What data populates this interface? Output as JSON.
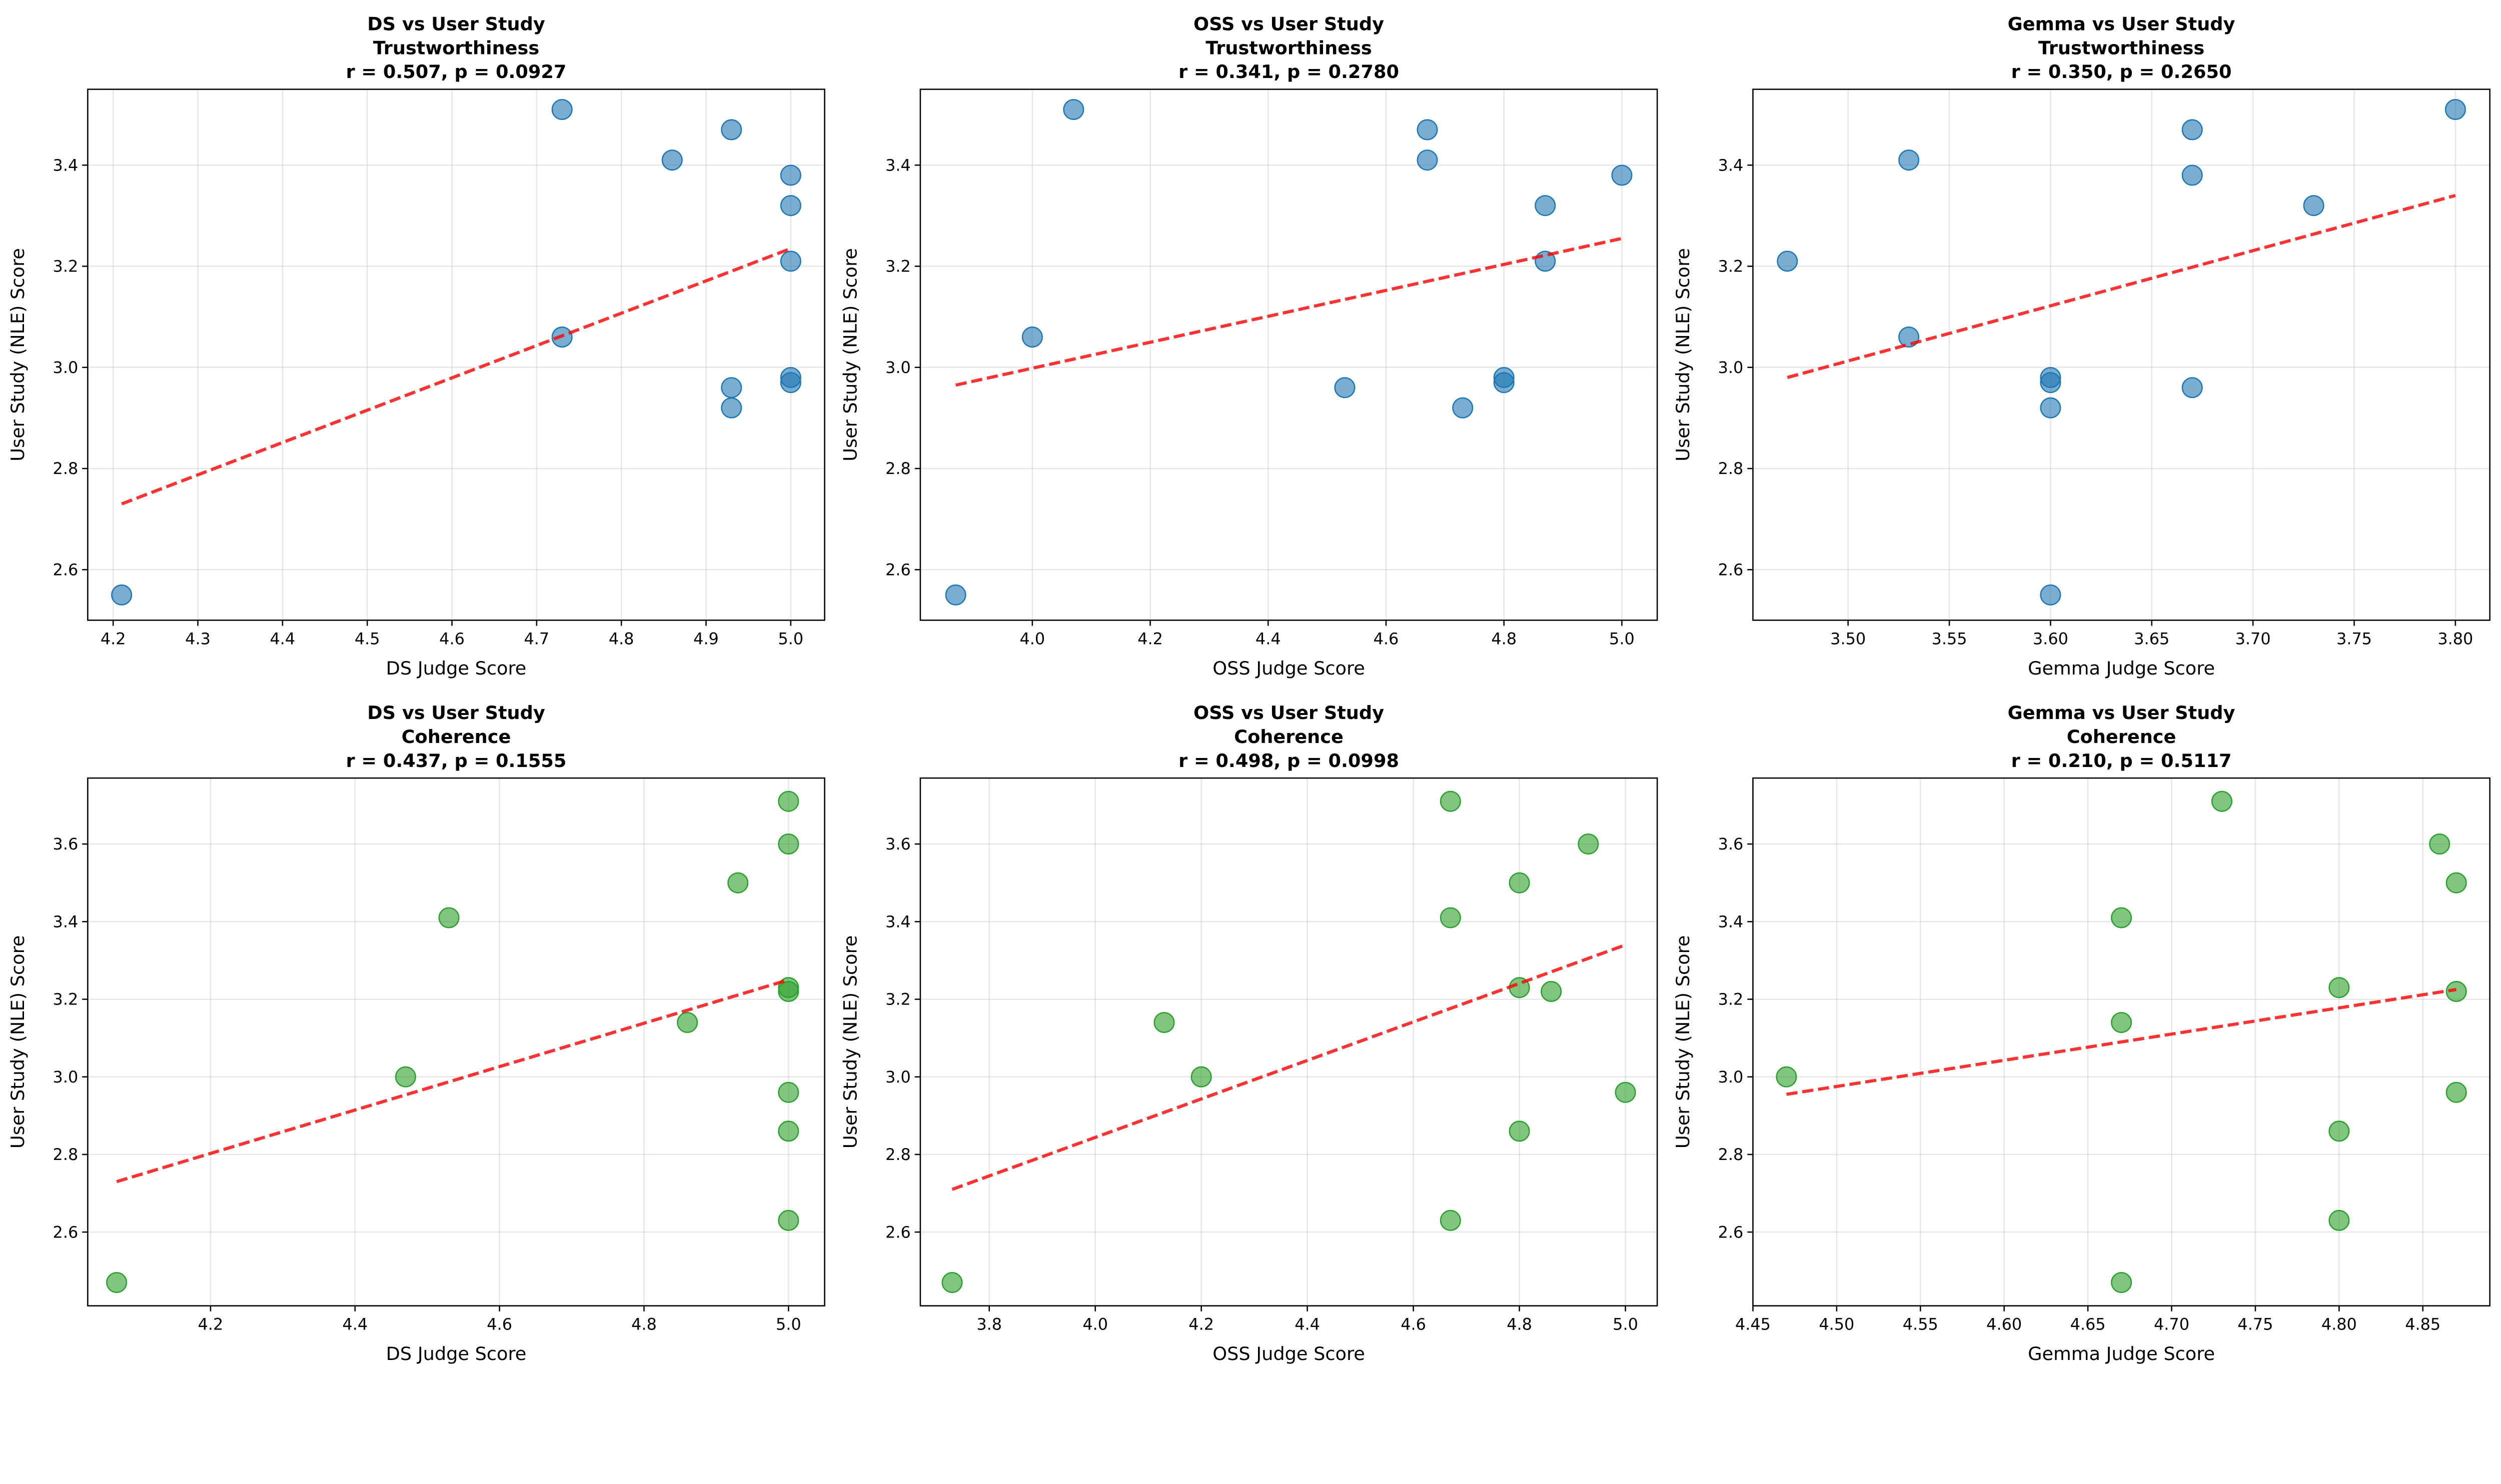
{
  "chart_data": [
    {
      "type": "scatter",
      "title": [
        "DS vs User Study",
        "Trustworthiness",
        "r = 0.507, p = 0.0927"
      ],
      "xlabel": "DS Judge Score",
      "ylabel": "User Study (NLE) Score",
      "point_color": "#1f77b4",
      "xlim": [
        4.17,
        5.04
      ],
      "ylim": [
        2.5,
        3.55
      ],
      "xticks": [
        "4.2",
        "4.3",
        "4.4",
        "4.5",
        "4.6",
        "4.7",
        "4.8",
        "4.9",
        "5.0"
      ],
      "yticks": [
        "2.6",
        "2.8",
        "3.0",
        "3.2",
        "3.4"
      ],
      "x": [
        4.21,
        4.73,
        4.73,
        4.86,
        4.93,
        4.93,
        4.93,
        5.0,
        5.0,
        5.0,
        5.0,
        5.0
      ],
      "y": [
        2.55,
        3.51,
        3.06,
        3.41,
        3.47,
        2.96,
        2.92,
        3.38,
        3.32,
        3.21,
        2.98,
        2.97
      ],
      "fit": {
        "x": [
          4.21,
          5.0
        ],
        "y": [
          2.73,
          3.235
        ]
      },
      "grid": true
    },
    {
      "type": "scatter",
      "title": [
        "OSS vs User Study",
        "Trustworthiness",
        "r = 0.341, p = 0.2780"
      ],
      "xlabel": "OSS Judge Score",
      "ylabel": "User Study (NLE) Score",
      "point_color": "#1f77b4",
      "xlim": [
        3.81,
        5.06
      ],
      "ylim": [
        2.5,
        3.55
      ],
      "xticks": [
        "4.0",
        "4.2",
        "4.4",
        "4.6",
        "4.8",
        "5.0"
      ],
      "yticks": [
        "2.6",
        "2.8",
        "3.0",
        "3.2",
        "3.4"
      ],
      "x": [
        3.87,
        4.0,
        4.07,
        4.53,
        4.67,
        4.67,
        4.73,
        4.8,
        4.8,
        4.87,
        4.87,
        5.0
      ],
      "y": [
        2.55,
        3.06,
        3.51,
        2.96,
        3.47,
        3.41,
        2.92,
        2.98,
        2.97,
        3.32,
        3.21,
        3.38
      ],
      "fit": {
        "x": [
          3.87,
          5.0
        ],
        "y": [
          2.965,
          3.255
        ]
      },
      "grid": true
    },
    {
      "type": "scatter",
      "title": [
        "Gemma vs User Study",
        "Trustworthiness",
        "r = 0.350, p = 0.2650"
      ],
      "xlabel": "Gemma Judge Score",
      "ylabel": "User Study (NLE) Score",
      "point_color": "#1f77b4",
      "xlim": [
        3.453,
        3.817
      ],
      "ylim": [
        2.5,
        3.55
      ],
      "xticks": [
        "3.50",
        "3.55",
        "3.60",
        "3.65",
        "3.70",
        "3.75",
        "3.80"
      ],
      "yticks": [
        "2.6",
        "2.8",
        "3.0",
        "3.2",
        "3.4"
      ],
      "x": [
        3.47,
        3.53,
        3.53,
        3.6,
        3.6,
        3.6,
        3.6,
        3.67,
        3.67,
        3.67,
        3.73,
        3.8
      ],
      "y": [
        3.21,
        3.41,
        3.06,
        2.98,
        2.97,
        2.92,
        2.55,
        3.47,
        3.38,
        2.96,
        3.32,
        3.51
      ],
      "fit": {
        "x": [
          3.47,
          3.8
        ],
        "y": [
          2.98,
          3.34
        ]
      },
      "grid": true
    },
    {
      "type": "scatter",
      "title": [
        "DS vs User Study",
        "Coherence",
        "r = 0.437, p = 0.1555"
      ],
      "xlabel": "DS Judge Score",
      "ylabel": "User Study (NLE) Score",
      "point_color": "#2ca02c",
      "xlim": [
        4.03,
        5.05
      ],
      "ylim": [
        2.41,
        3.77
      ],
      "xticks": [
        "4.2",
        "4.4",
        "4.6",
        "4.8",
        "5.0"
      ],
      "yticks": [
        "2.6",
        "2.8",
        "3.0",
        "3.2",
        "3.4",
        "3.6"
      ],
      "x": [
        4.07,
        4.47,
        4.53,
        4.86,
        4.93,
        5.0,
        5.0,
        5.0,
        5.0,
        5.0,
        5.0,
        5.0
      ],
      "y": [
        2.47,
        3.0,
        3.41,
        3.14,
        3.5,
        3.71,
        3.6,
        3.23,
        3.22,
        2.96,
        2.86,
        2.63
      ],
      "fit": {
        "x": [
          4.07,
          5.0
        ],
        "y": [
          2.73,
          3.25
        ]
      },
      "grid": true
    },
    {
      "type": "scatter",
      "title": [
        "OSS vs User Study",
        "Coherence",
        "r = 0.498, p = 0.0998"
      ],
      "xlabel": "OSS Judge Score",
      "ylabel": "User Study (NLE) Score",
      "point_color": "#2ca02c",
      "xlim": [
        3.67,
        5.06
      ],
      "ylim": [
        2.41,
        3.77
      ],
      "xticks": [
        "3.8",
        "4.0",
        "4.2",
        "4.4",
        "4.6",
        "4.8",
        "5.0"
      ],
      "yticks": [
        "2.6",
        "2.8",
        "3.0",
        "3.2",
        "3.4",
        "3.6"
      ],
      "x": [
        3.73,
        4.13,
        4.2,
        4.67,
        4.67,
        4.67,
        4.8,
        4.8,
        4.8,
        4.86,
        4.93,
        5.0
      ],
      "y": [
        2.47,
        3.14,
        3.0,
        3.71,
        3.41,
        2.63,
        3.5,
        3.23,
        2.86,
        3.22,
        3.6,
        2.96
      ],
      "fit": {
        "x": [
          3.73,
          5.0
        ],
        "y": [
          2.71,
          3.34
        ]
      },
      "grid": true
    },
    {
      "type": "scatter",
      "title": [
        "Gemma vs User Study",
        "Coherence",
        "r = 0.210, p = 0.5117"
      ],
      "xlabel": "Gemma Judge Score",
      "ylabel": "User Study (NLE) Score",
      "point_color": "#2ca02c",
      "xlim": [
        4.45,
        4.89
      ],
      "ylim": [
        2.41,
        3.77
      ],
      "xticks": [
        "4.45",
        "4.50",
        "4.55",
        "4.60",
        "4.65",
        "4.70",
        "4.75",
        "4.80",
        "4.85"
      ],
      "yticks": [
        "2.6",
        "2.8",
        "3.0",
        "3.2",
        "3.4",
        "3.6"
      ],
      "x": [
        4.47,
        4.67,
        4.67,
        4.67,
        4.73,
        4.8,
        4.8,
        4.8,
        4.86,
        4.87,
        4.87,
        4.87
      ],
      "y": [
        3.0,
        3.41,
        3.14,
        2.47,
        3.71,
        3.23,
        2.86,
        2.63,
        3.6,
        3.5,
        3.22,
        2.96
      ],
      "fit": {
        "x": [
          4.47,
          4.87
        ],
        "y": [
          2.955,
          3.225
        ]
      },
      "grid": true
    }
  ],
  "fit_color": "#ff0000"
}
